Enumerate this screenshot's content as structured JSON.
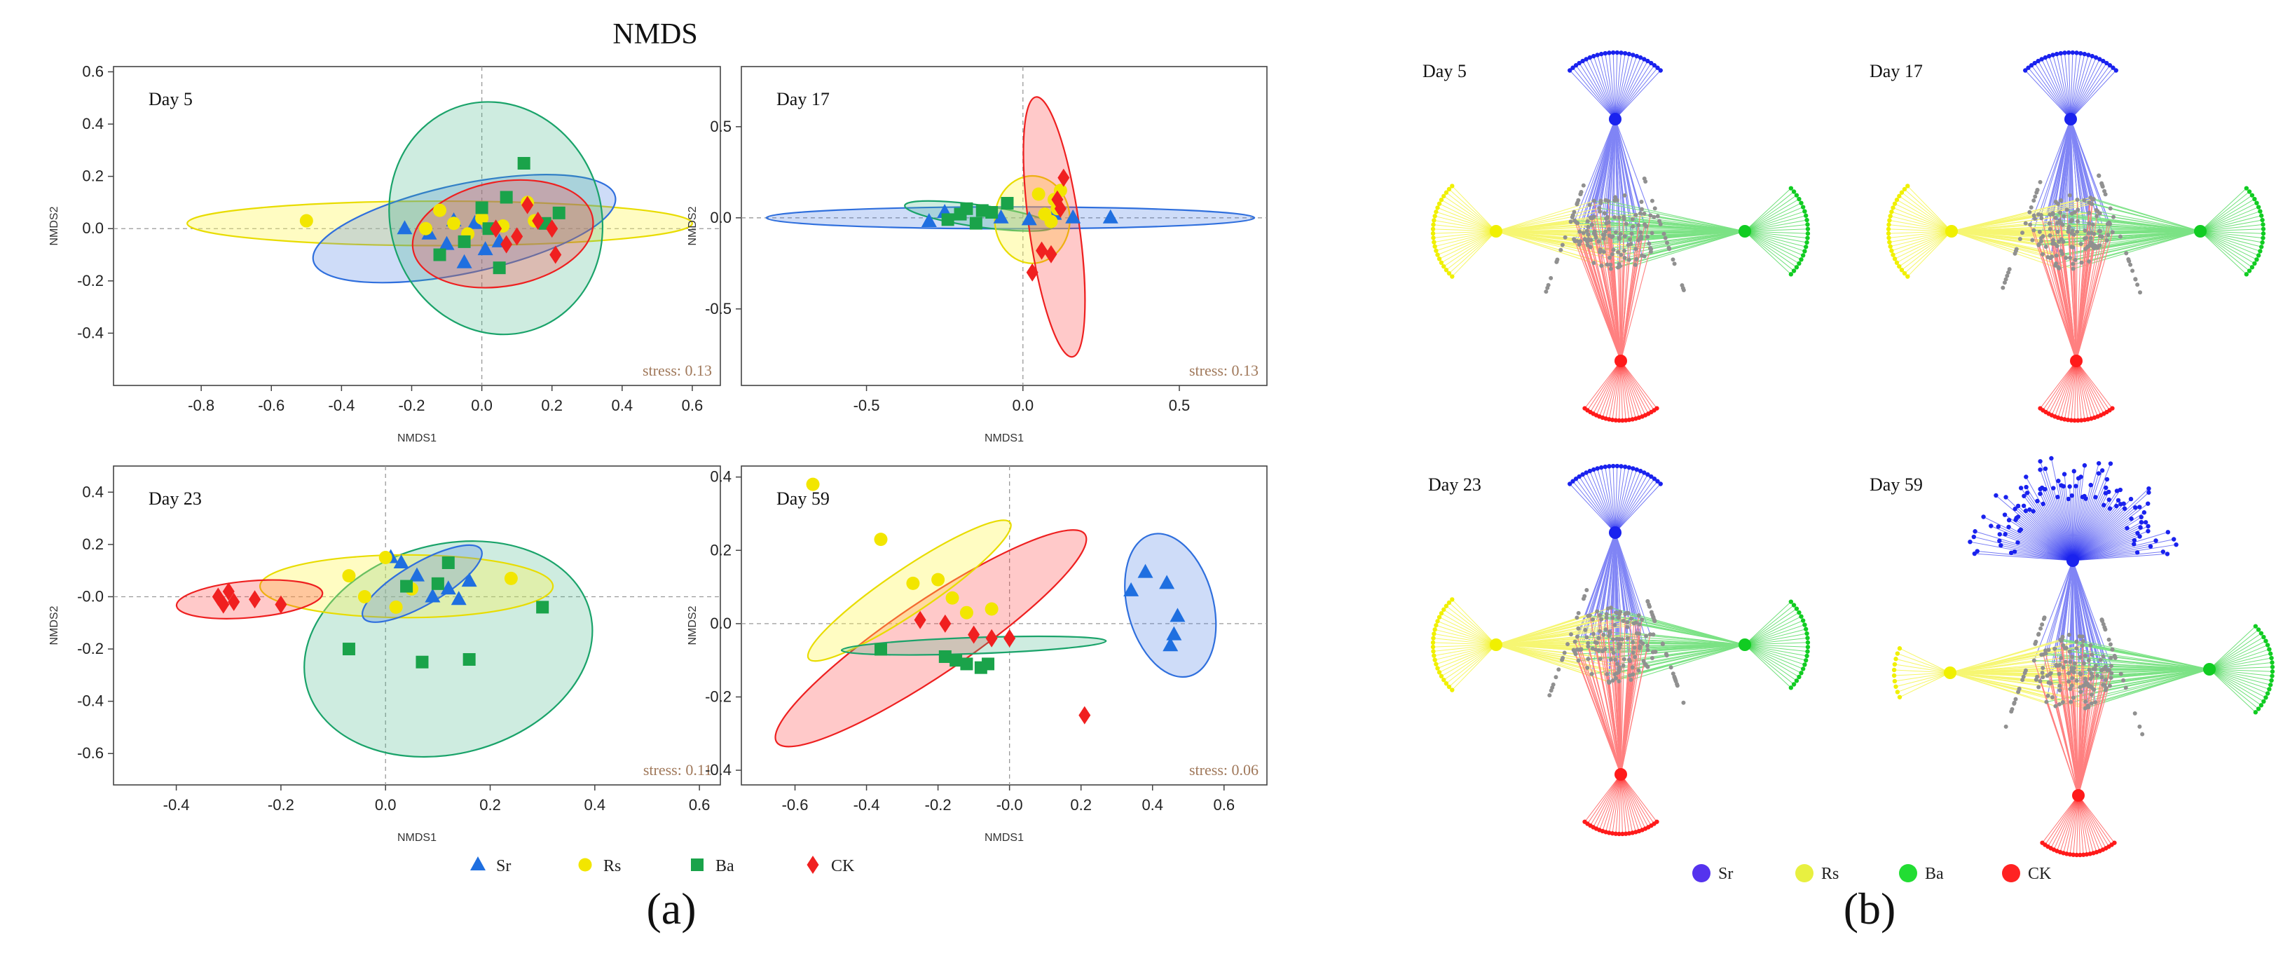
{
  "figure": {
    "title": "NMDS",
    "panel_a_label": "(a)",
    "panel_b_label": "(b)",
    "legend_a": [
      {
        "name": "Sr",
        "marker": "triangle",
        "color": "#1f6fe0"
      },
      {
        "name": "Rs",
        "marker": "circle",
        "color": "#f2e600"
      },
      {
        "name": "Ba",
        "marker": "square",
        "color": "#1aa34a"
      },
      {
        "name": "CK",
        "marker": "diamond",
        "color": "#f02020"
      }
    ],
    "legend_b": [
      {
        "name": "Sr",
        "color": "#5533ee"
      },
      {
        "name": "Rs",
        "color": "#e8f040"
      },
      {
        "name": "Ba",
        "color": "#22dd33"
      },
      {
        "name": "CK",
        "color": "#ff2222"
      }
    ],
    "network_days": [
      "Day 5",
      "Day 17",
      "Day 23",
      "Day 59"
    ],
    "network_group_colors": {
      "Sr": "#1a22ee",
      "Rs": "#f0f000",
      "Ba": "#11cc22",
      "CK": "#ff1a1a",
      "shared": "#909090"
    }
  },
  "chart_data": [
    {
      "type": "scatter",
      "title": "Day 5",
      "xlabel": "NMDS1",
      "ylabel": "NMDS2",
      "xlim": [
        -1.05,
        0.68
      ],
      "ylim": [
        -0.6,
        0.62
      ],
      "xticks": [
        -0.8,
        -0.6,
        -0.4,
        -0.2,
        0.0,
        0.2,
        0.4,
        0.6
      ],
      "xticklabels": [
        "-0.8",
        "-0.6",
        "-0.4",
        "-0.2",
        "0.0",
        "0.2",
        "0.4",
        "0.6"
      ],
      "yticks": [
        -0.4,
        -0.2,
        0.0,
        0.2,
        0.4,
        0.6
      ],
      "yticklabels": [
        "-0.4",
        "-0.2",
        "0.0",
        "0.2",
        "0.4",
        "0.6"
      ],
      "stress": "stress: 0.13",
      "ellipses": [
        {
          "series": "Rs",
          "cx": -0.12,
          "cy": 0.02,
          "rx": 0.72,
          "ry": 0.085,
          "angle": 0
        },
        {
          "series": "Sr",
          "cx": -0.05,
          "cy": 0.0,
          "rx": 0.44,
          "ry": 0.17,
          "angle": -12
        },
        {
          "series": "Ba",
          "cx": 0.04,
          "cy": 0.04,
          "rx": 0.3,
          "ry": 0.45,
          "angle": -20
        },
        {
          "series": "CK",
          "cx": 0.06,
          "cy": -0.02,
          "rx": 0.26,
          "ry": 0.2,
          "angle": -10
        }
      ],
      "series": [
        {
          "name": "Sr",
          "x": [
            -0.22,
            -0.15,
            -0.1,
            -0.08,
            -0.05,
            -0.02,
            0.01,
            0.05
          ],
          "y": [
            0.0,
            -0.02,
            -0.06,
            0.03,
            -0.13,
            0.02,
            -0.08,
            -0.05
          ]
        },
        {
          "name": "Rs",
          "x": [
            -0.5,
            -0.16,
            -0.12,
            -0.08,
            -0.04,
            0.0,
            0.06,
            0.13,
            0.15
          ],
          "y": [
            0.03,
            0.0,
            0.07,
            0.02,
            -0.02,
            0.04,
            0.01,
            0.1,
            0.03
          ]
        },
        {
          "name": "Ba",
          "x": [
            -0.12,
            -0.05,
            0.0,
            0.02,
            0.05,
            0.07,
            0.12,
            0.18,
            0.22
          ],
          "y": [
            -0.1,
            -0.05,
            0.08,
            0.0,
            -0.15,
            0.12,
            0.25,
            0.02,
            0.06
          ]
        },
        {
          "name": "CK",
          "x": [
            0.04,
            0.07,
            0.1,
            0.13,
            0.16,
            0.2,
            0.21
          ],
          "y": [
            0.0,
            -0.06,
            -0.03,
            0.09,
            0.03,
            0.0,
            -0.1
          ]
        }
      ]
    },
    {
      "type": "scatter",
      "title": "Day 17",
      "xlabel": "NMDS1",
      "ylabel": "NMDS2",
      "xlim": [
        -0.9,
        0.78
      ],
      "ylim": [
        -0.92,
        0.83
      ],
      "xticks": [
        -0.5,
        0.0,
        0.5
      ],
      "xticklabels": [
        "-0.5",
        "0.0",
        "0.5"
      ],
      "yticks": [
        -0.5,
        0.0,
        0.5
      ],
      "yticklabels": [
        "-0.5",
        "0.0",
        "0.5"
      ],
      "stress": "stress: 0.13",
      "ellipses": [
        {
          "series": "Sr",
          "cx": -0.04,
          "cy": 0.0,
          "rx": 0.78,
          "ry": 0.06,
          "angle": 0
        },
        {
          "series": "Ba",
          "cx": -0.14,
          "cy": 0.01,
          "rx": 0.24,
          "ry": 0.06,
          "angle": 8
        },
        {
          "series": "Rs",
          "cx": 0.03,
          "cy": -0.01,
          "rx": 0.12,
          "ry": 0.24,
          "angle": 0
        },
        {
          "series": "CK",
          "cx": 0.1,
          "cy": -0.05,
          "rx": 0.08,
          "ry": 0.72,
          "angle": -8
        }
      ],
      "series": [
        {
          "name": "Sr",
          "x": [
            -0.3,
            -0.25,
            -0.07,
            0.02,
            0.1,
            0.16,
            0.28
          ],
          "y": [
            -0.02,
            0.03,
            0.0,
            -0.01,
            0.02,
            0.0,
            0.0
          ]
        },
        {
          "name": "Rs",
          "x": [
            0.05,
            0.07,
            0.09,
            0.1,
            0.12,
            0.11
          ],
          "y": [
            0.13,
            0.02,
            -0.02,
            0.1,
            0.15,
            0.05
          ]
        },
        {
          "name": "Ba",
          "x": [
            -0.24,
            -0.2,
            -0.18,
            -0.15,
            -0.13,
            -0.1,
            -0.05
          ],
          "y": [
            -0.01,
            0.02,
            0.05,
            -0.03,
            0.04,
            0.03,
            0.08
          ]
        },
        {
          "name": "CK",
          "x": [
            0.03,
            0.06,
            0.09,
            0.11,
            0.13,
            0.12
          ],
          "y": [
            -0.3,
            -0.18,
            -0.2,
            0.1,
            0.22,
            0.05
          ]
        }
      ]
    },
    {
      "type": "scatter",
      "title": "Day 23",
      "xlabel": "NMDS1",
      "ylabel": "NMDS2",
      "xlim": [
        -0.52,
        0.64
      ],
      "ylim": [
        -0.72,
        0.5
      ],
      "xticks": [
        -0.4,
        -0.2,
        0.0,
        0.2,
        0.4,
        0.6
      ],
      "xticklabels": [
        "-0.4",
        "-0.2",
        "0.0",
        "0.2",
        "0.4",
        "0.6"
      ],
      "yticks": [
        -0.6,
        -0.4,
        -0.2,
        0.0,
        0.2,
        0.4
      ],
      "yticklabels": [
        "-0.6",
        "-0.4",
        "-0.2",
        "-0.0",
        "0.2",
        "0.4"
      ],
      "stress": "stress: 0.11",
      "ellipses": [
        {
          "series": "Ba",
          "cx": 0.12,
          "cy": -0.2,
          "rx": 0.28,
          "ry": 0.4,
          "angle": -15
        },
        {
          "series": "Rs",
          "cx": 0.04,
          "cy": 0.04,
          "rx": 0.28,
          "ry": 0.12,
          "angle": 0
        },
        {
          "series": "Sr",
          "cx": 0.07,
          "cy": 0.05,
          "rx": 0.13,
          "ry": 0.08,
          "angle": -30
        },
        {
          "series": "CK",
          "cx": -0.26,
          "cy": -0.01,
          "rx": 0.14,
          "ry": 0.07,
          "angle": -5
        }
      ],
      "series": [
        {
          "name": "Sr",
          "x": [
            0.01,
            0.03,
            0.06,
            0.09,
            0.12,
            0.14,
            0.16
          ],
          "y": [
            0.15,
            0.13,
            0.08,
            0.0,
            0.03,
            -0.01,
            0.06
          ]
        },
        {
          "name": "Rs",
          "x": [
            -0.07,
            -0.04,
            0.0,
            0.02,
            0.05,
            0.24
          ],
          "y": [
            0.08,
            0.0,
            0.15,
            -0.04,
            0.03,
            0.07
          ]
        },
        {
          "name": "Ba",
          "x": [
            -0.07,
            0.04,
            0.07,
            0.1,
            0.12,
            0.16,
            0.3
          ],
          "y": [
            -0.2,
            0.04,
            -0.25,
            0.05,
            0.13,
            -0.24,
            -0.04
          ]
        },
        {
          "name": "CK",
          "x": [
            -0.32,
            -0.31,
            -0.3,
            -0.29,
            -0.25,
            -0.2
          ],
          "y": [
            0.0,
            -0.03,
            0.02,
            -0.02,
            -0.01,
            -0.03
          ]
        }
      ]
    },
    {
      "type": "scatter",
      "title": "Day 59",
      "xlabel": "NMDS1",
      "ylabel": "NMDS2",
      "xlim": [
        -0.75,
        0.72
      ],
      "ylim": [
        -0.44,
        0.43
      ],
      "xticks": [
        -0.6,
        -0.4,
        -0.2,
        0.0,
        0.2,
        0.4,
        0.6
      ],
      "xticklabels": [
        "-0.6",
        "-0.4",
        "-0.2",
        "-0.0",
        "0.2",
        "0.4",
        "0.6"
      ],
      "yticks": [
        -0.4,
        -0.2,
        0.0,
        0.2,
        0.4
      ],
      "yticklabels": [
        "-0.4",
        "-0.2",
        "0.0",
        "0.2",
        "0.4"
      ],
      "stress": "stress: 0.06",
      "ellipses": [
        {
          "series": "CK",
          "cx": -0.22,
          "cy": -0.04,
          "rx": 0.52,
          "ry": 0.1,
          "angle": -34
        },
        {
          "series": "Rs",
          "cx": -0.28,
          "cy": 0.09,
          "rx": 0.34,
          "ry": 0.06,
          "angle": -34
        },
        {
          "series": "Ba",
          "cx": -0.1,
          "cy": -0.06,
          "rx": 0.37,
          "ry": 0.022,
          "angle": -2
        },
        {
          "series": "Sr",
          "cx": 0.45,
          "cy": 0.05,
          "rx": 0.12,
          "ry": 0.2,
          "angle": -15
        }
      ],
      "series": [
        {
          "name": "Sr",
          "x": [
            0.34,
            0.38,
            0.44,
            0.45,
            0.46,
            0.47
          ],
          "y": [
            0.09,
            0.14,
            0.11,
            -0.06,
            -0.03,
            0.02
          ]
        },
        {
          "name": "Rs",
          "x": [
            -0.55,
            -0.36,
            -0.27,
            -0.2,
            -0.16,
            -0.12,
            -0.05
          ],
          "y": [
            0.38,
            0.23,
            0.11,
            0.12,
            0.07,
            0.03,
            0.04
          ]
        },
        {
          "name": "Ba",
          "x": [
            -0.36,
            -0.18,
            -0.15,
            -0.12,
            -0.08,
            -0.06
          ],
          "y": [
            -0.07,
            -0.09,
            -0.1,
            -0.11,
            -0.12,
            -0.11
          ]
        },
        {
          "name": "CK",
          "x": [
            -0.25,
            -0.18,
            -0.1,
            -0.05,
            0.0,
            0.21
          ],
          "y": [
            0.01,
            0.0,
            -0.03,
            -0.04,
            -0.04,
            -0.25
          ]
        }
      ]
    }
  ]
}
